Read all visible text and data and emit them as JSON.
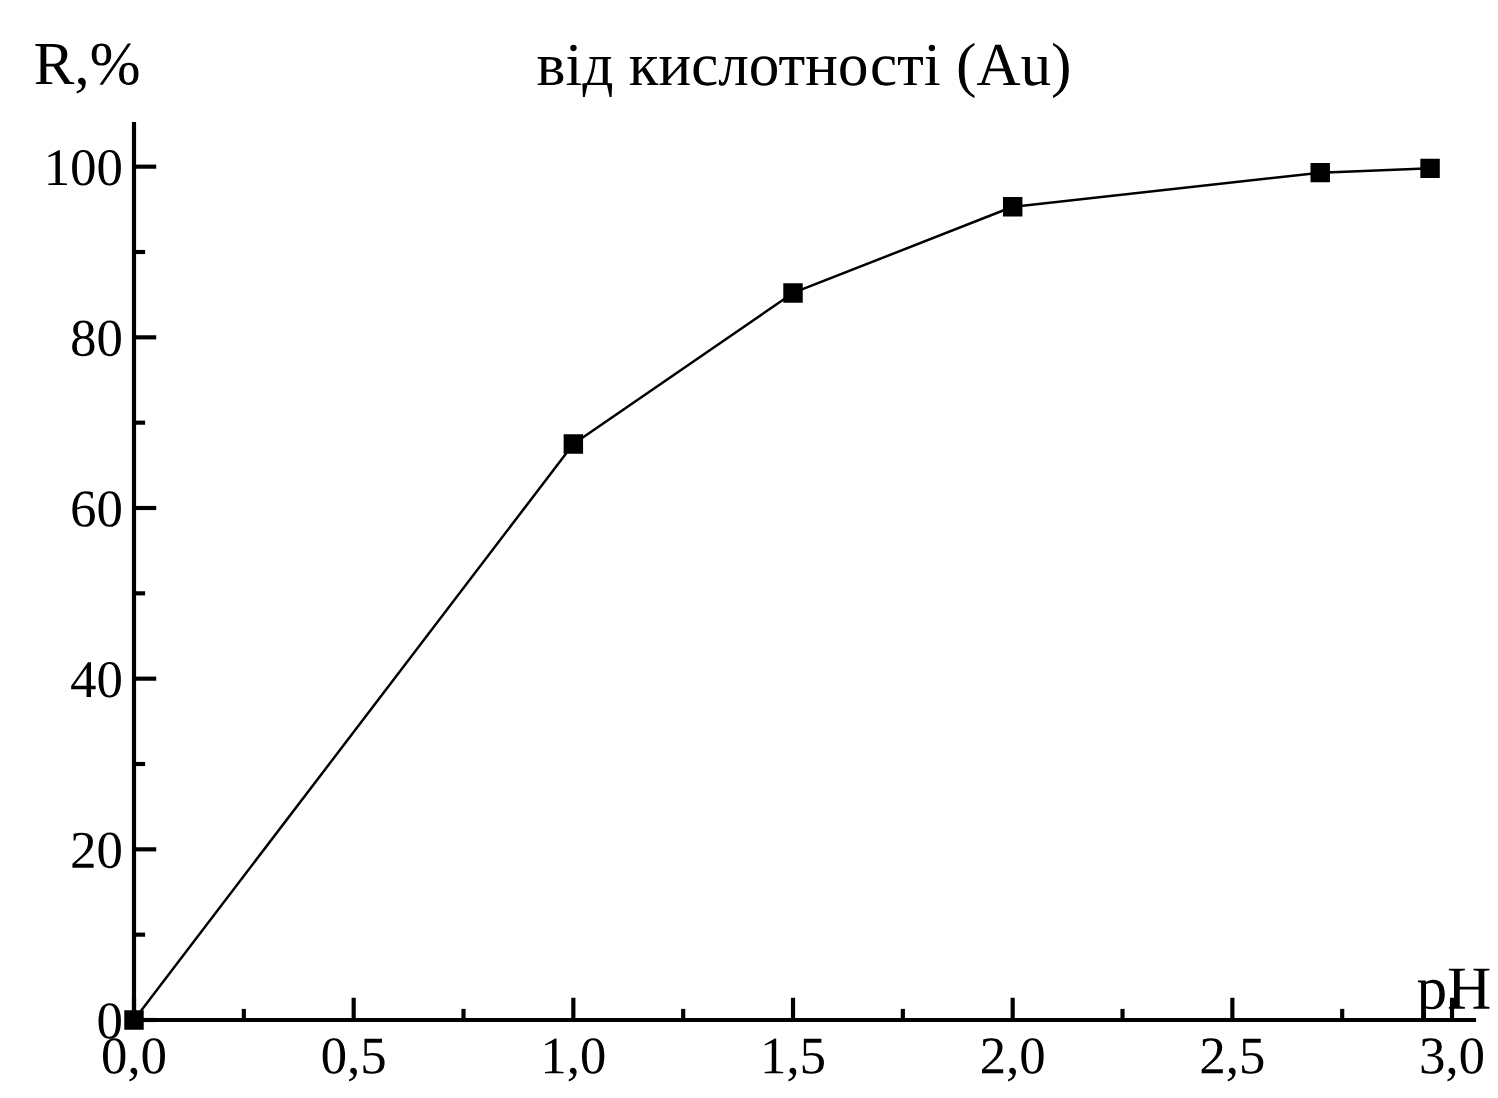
{
  "chart_data": {
    "type": "line",
    "title": "від кислотності (Au)",
    "xlabel": "pH",
    "ylabel": "R,%",
    "x": [
      0.0,
      1.0,
      1.5,
      2.0,
      2.7,
      2.95
    ],
    "series": [
      {
        "color": "#000000",
        "values": [
          0,
          67.5,
          85.2,
          95.3,
          99.3,
          99.8
        ]
      }
    ],
    "marker": "square",
    "line_style": "solid",
    "grid": false,
    "legend": false,
    "xlim": [
      0,
      3.05
    ],
    "ylim": [
      0,
      105
    ],
    "xticks": [
      {
        "value": 0,
        "label": "0,0"
      },
      {
        "value": 0.25,
        "label": null
      },
      {
        "value": 0.5,
        "label": "0,5"
      },
      {
        "value": 0.75,
        "label": null
      },
      {
        "value": 1.0,
        "label": "1,0"
      },
      {
        "value": 1.25,
        "label": null
      },
      {
        "value": 1.5,
        "label": "1,5"
      },
      {
        "value": 1.75,
        "label": null
      },
      {
        "value": 2.0,
        "label": "2,0"
      },
      {
        "value": 2.25,
        "label": null
      },
      {
        "value": 2.5,
        "label": "2,5"
      },
      {
        "value": 2.75,
        "label": null
      },
      {
        "value": 3.0,
        "label": "3,0"
      }
    ],
    "yticks": [
      0,
      {
        "value": 10,
        "label": null
      },
      20,
      {
        "value": 30,
        "label": null
      },
      40,
      {
        "value": 50,
        "label": null
      },
      60,
      {
        "value": 70,
        "label": null
      },
      80,
      {
        "value": 90,
        "label": null
      },
      100
    ]
  }
}
